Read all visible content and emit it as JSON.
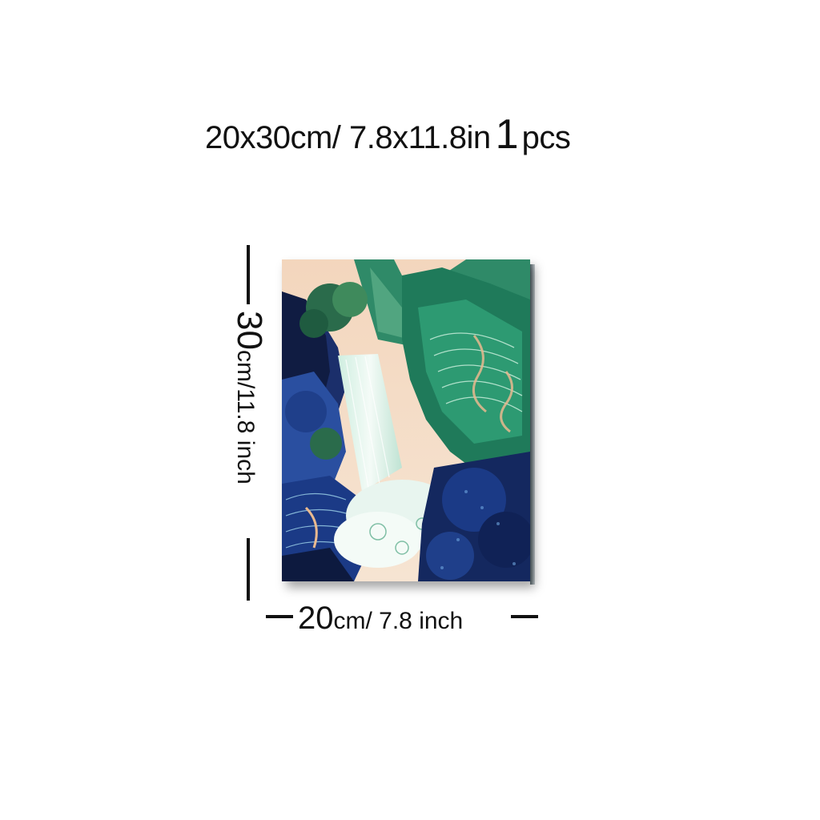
{
  "headline": {
    "size_text": "20x30cm/ 7.8x11.8in",
    "quantity": "1",
    "quantity_unit": "pcs"
  },
  "height_dimension": {
    "value": "30",
    "unit_text": "cm/11.8 inch"
  },
  "width_dimension": {
    "value": "20",
    "unit_text": "cm/ 7.8 inch"
  },
  "artwork": {
    "subject": "waterfall-landscape-painting",
    "colors": {
      "sky": "#f3d6bd",
      "deep_blue": "#1b2f6b",
      "navy": "#101c42",
      "emerald": "#1f7a5a",
      "mint": "#8fd1b3",
      "water": "#e8f5ef",
      "peach": "#e9b98f"
    }
  }
}
